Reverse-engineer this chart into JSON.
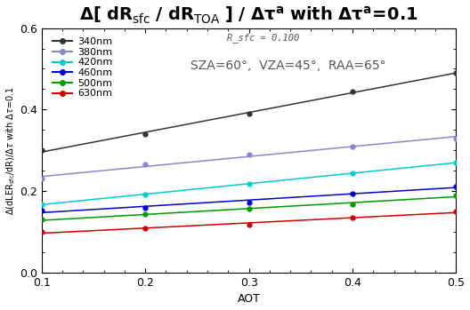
{
  "subtitle": "R_sfc = 0.100",
  "annotation": "SZA=60°,  VZA=45°,  RAA=65°",
  "xlabel": "AOT",
  "xlim": [
    0.1,
    0.5
  ],
  "ylim": [
    0.0,
    0.6
  ],
  "xticks": [
    0.1,
    0.2,
    0.3,
    0.4,
    0.5
  ],
  "yticks": [
    0.0,
    0.2,
    0.4,
    0.6
  ],
  "series": [
    {
      "label": "340nm",
      "color": "#333333",
      "x": [
        0.1,
        0.2,
        0.3,
        0.4,
        0.5
      ],
      "y": [
        0.3,
        0.34,
        0.39,
        0.445,
        0.49
      ]
    },
    {
      "label": "380nm",
      "color": "#8888cc",
      "x": [
        0.1,
        0.2,
        0.3,
        0.4,
        0.5
      ],
      "y": [
        0.23,
        0.265,
        0.29,
        0.31,
        0.33
      ]
    },
    {
      "label": "420nm",
      "color": "#00cccc",
      "x": [
        0.1,
        0.2,
        0.3,
        0.4,
        0.5
      ],
      "y": [
        0.168,
        0.192,
        0.217,
        0.245,
        0.27
      ]
    },
    {
      "label": "460nm",
      "color": "#0000cc",
      "x": [
        0.1,
        0.2,
        0.3,
        0.4,
        0.5
      ],
      "y": [
        0.152,
        0.16,
        0.173,
        0.194,
        0.212
      ]
    },
    {
      "label": "500nm",
      "color": "#009900",
      "x": [
        0.1,
        0.2,
        0.3,
        0.4,
        0.5
      ],
      "y": [
        0.13,
        0.143,
        0.156,
        0.168,
        0.19
      ]
    },
    {
      "label": "630nm",
      "color": "#cc0000",
      "x": [
        0.1,
        0.2,
        0.3,
        0.4,
        0.5
      ],
      "y": [
        0.1,
        0.108,
        0.118,
        0.135,
        0.15
      ]
    }
  ],
  "background_color": "#ffffff",
  "title_fontsize": 14,
  "subtitle_fontsize": 7.5,
  "annotation_fontsize": 10,
  "axis_label_fontsize": 9,
  "tick_fontsize": 9,
  "legend_fontsize": 8
}
